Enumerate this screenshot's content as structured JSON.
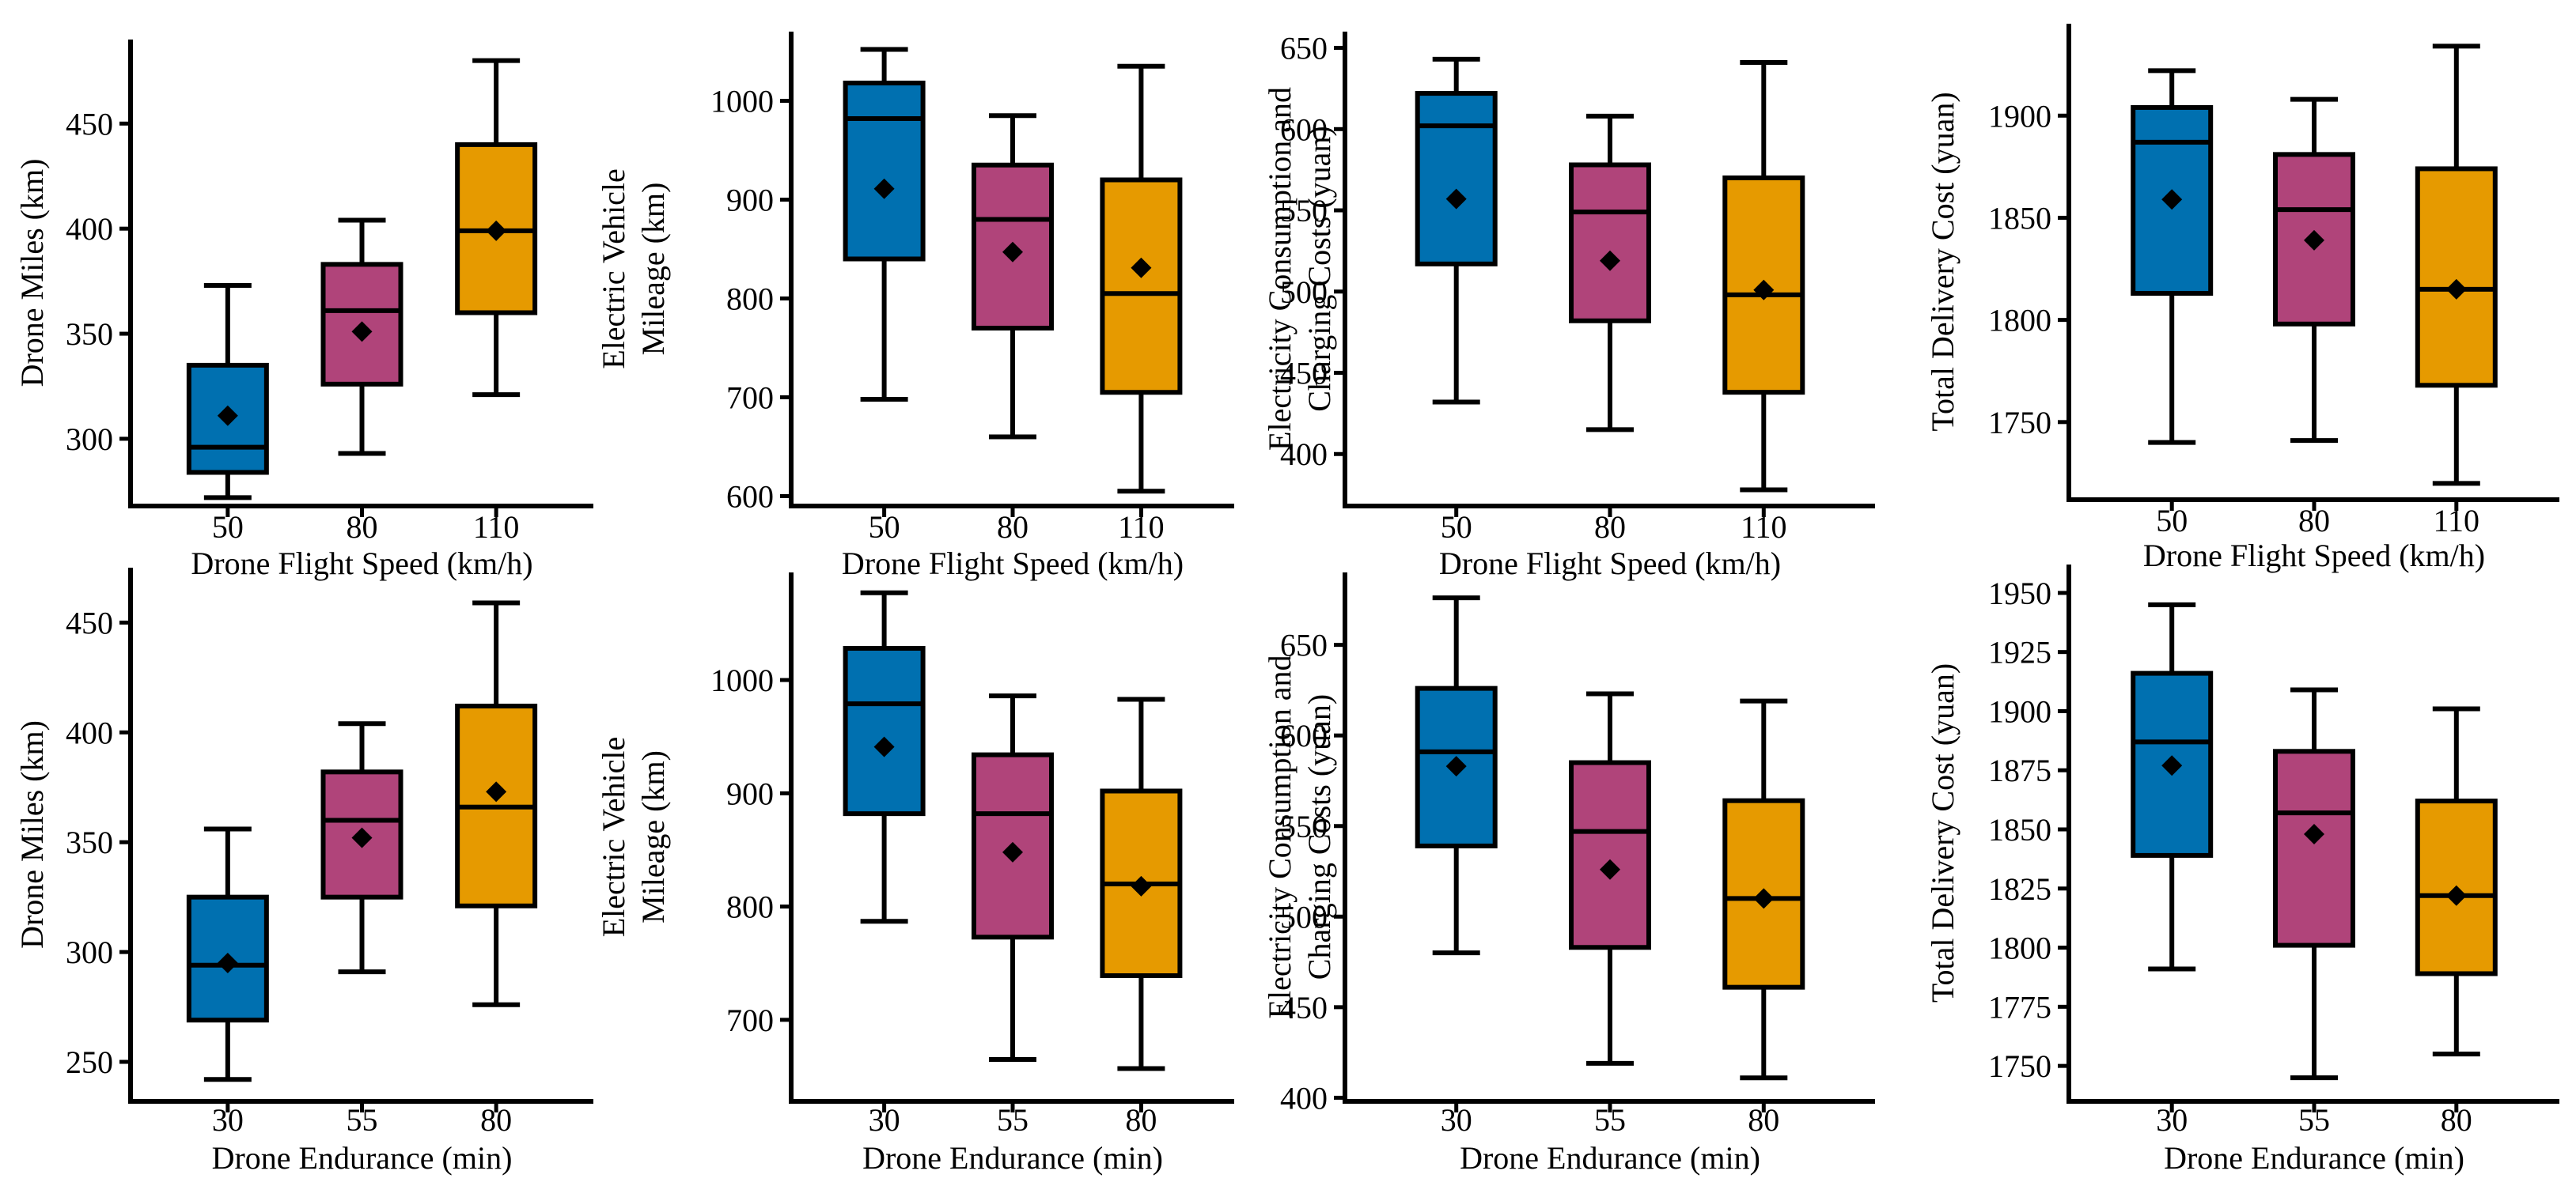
{
  "colors": {
    "blue": "#0070B0",
    "magenta": "#B0447A",
    "orange": "#E69A00",
    "ink": "#000000"
  },
  "chart_data": [
    {
      "type": "box",
      "xlabel": "Drone Flight Speed (km/h)",
      "ylabel": [
        "Drone Miles (km)"
      ],
      "ylim": [
        268,
        490
      ],
      "yticks": [
        300,
        350,
        400,
        450
      ],
      "categories": [
        "50",
        "80",
        "110"
      ],
      "boxes": [
        {
          "color": "blue",
          "whisker_low": 272,
          "q1": 284,
          "median": 296,
          "q3": 335,
          "whisker_high": 373,
          "mean": 311
        },
        {
          "color": "magenta",
          "whisker_low": 293,
          "q1": 326,
          "median": 361,
          "q3": 383,
          "whisker_high": 404,
          "mean": 351
        },
        {
          "color": "orange",
          "whisker_low": 321,
          "q1": 360,
          "median": 399,
          "q3": 440,
          "whisker_high": 480,
          "mean": 399
        }
      ]
    },
    {
      "type": "box",
      "xlabel": "Drone Flight Speed (km/h)",
      "ylabel": [
        "Electric Vehicle",
        "Mileage (km)"
      ],
      "ylim": [
        590,
        1070
      ],
      "yticks": [
        600,
        700,
        800,
        900,
        1000
      ],
      "categories": [
        "50",
        "80",
        "110"
      ],
      "boxes": [
        {
          "color": "blue",
          "whisker_low": 698,
          "q1": 840,
          "median": 982,
          "q3": 1018,
          "whisker_high": 1052,
          "mean": 911
        },
        {
          "color": "magenta",
          "whisker_low": 660,
          "q1": 770,
          "median": 880,
          "q3": 935,
          "whisker_high": 985,
          "mean": 847
        },
        {
          "color": "orange",
          "whisker_low": 605,
          "q1": 705,
          "median": 805,
          "q3": 920,
          "whisker_high": 1035,
          "mean": 831
        }
      ]
    },
    {
      "type": "box",
      "xlabel": "Drone Flight Speed (km/h)",
      "ylabel": [
        "Electricity Consumption and",
        "Charging Costs (yuan)"
      ],
      "ylim": [
        368,
        660
      ],
      "yticks": [
        400,
        450,
        500,
        550,
        600,
        650
      ],
      "categories": [
        "50",
        "80",
        "110"
      ],
      "boxes": [
        {
          "color": "blue",
          "whisker_low": 432,
          "q1": 517,
          "median": 602,
          "q3": 622,
          "whisker_high": 643,
          "mean": 557
        },
        {
          "color": "magenta",
          "whisker_low": 415,
          "q1": 482,
          "median": 549,
          "q3": 578,
          "whisker_high": 608,
          "mean": 519
        },
        {
          "color": "orange",
          "whisker_low": 378,
          "q1": 438,
          "median": 498,
          "q3": 570,
          "whisker_high": 641,
          "mean": 501
        }
      ]
    },
    {
      "type": "box",
      "xlabel": "Drone Flight Speed (km/h)",
      "ylabel": [
        "Total Delivery Cost (yuan)"
      ],
      "ylim": [
        1712,
        1945
      ],
      "yticks": [
        1750,
        1800,
        1850,
        1900
      ],
      "categories": [
        "50",
        "80",
        "110"
      ],
      "boxes": [
        {
          "color": "blue",
          "whisker_low": 1740,
          "q1": 1813,
          "median": 1887,
          "q3": 1904,
          "whisker_high": 1922,
          "mean": 1859
        },
        {
          "color": "magenta",
          "whisker_low": 1741,
          "q1": 1798,
          "median": 1854,
          "q3": 1881,
          "whisker_high": 1908,
          "mean": 1839
        },
        {
          "color": "orange",
          "whisker_low": 1720,
          "q1": 1768,
          "median": 1815,
          "q3": 1874,
          "whisker_high": 1934,
          "mean": 1815
        }
      ]
    },
    {
      "type": "box",
      "xlabel": "Drone Endurance (min)",
      "ylabel": [
        "Drone Miles (km)"
      ],
      "ylim": [
        232,
        475
      ],
      "yticks": [
        250,
        300,
        350,
        400,
        450
      ],
      "categories": [
        "30",
        "55",
        "80"
      ],
      "boxes": [
        {
          "color": "blue",
          "whisker_low": 242,
          "q1": 269,
          "median": 294,
          "q3": 325,
          "whisker_high": 356,
          "mean": 295
        },
        {
          "color": "magenta",
          "whisker_low": 291,
          "q1": 325,
          "median": 360,
          "q3": 382,
          "whisker_high": 404,
          "mean": 352
        },
        {
          "color": "orange",
          "whisker_low": 276,
          "q1": 321,
          "median": 366,
          "q3": 412,
          "whisker_high": 459,
          "mean": 373
        }
      ]
    },
    {
      "type": "box",
      "xlabel": "Drone Endurance (min)",
      "ylabel": [
        "Electric Vehicle",
        "Mileage (km)"
      ],
      "ylim": [
        628,
        1095
      ],
      "yticks": [
        700,
        800,
        900,
        1000
      ],
      "categories": [
        "30",
        "55",
        "80"
      ],
      "boxes": [
        {
          "color": "blue",
          "whisker_low": 787,
          "q1": 882,
          "median": 979,
          "q3": 1028,
          "whisker_high": 1077,
          "mean": 941
        },
        {
          "color": "magenta",
          "whisker_low": 665,
          "q1": 773,
          "median": 882,
          "q3": 934,
          "whisker_high": 986,
          "mean": 848
        },
        {
          "color": "orange",
          "whisker_low": 657,
          "q1": 739,
          "median": 820,
          "q3": 902,
          "whisker_high": 983,
          "mean": 818
        }
      ]
    },
    {
      "type": "box",
      "xlabel": "Drone Endurance (min)",
      "ylabel": [
        "Electricity Consumption and",
        "Charging Costs (yuan)"
      ],
      "ylim": [
        398,
        690
      ],
      "yticks": [
        400,
        450,
        500,
        550,
        600,
        650
      ],
      "categories": [
        "30",
        "55",
        "80"
      ],
      "boxes": [
        {
          "color": "blue",
          "whisker_low": 480,
          "q1": 539,
          "median": 591,
          "q3": 626,
          "whisker_high": 676,
          "mean": 583
        },
        {
          "color": "magenta",
          "whisker_low": 419,
          "q1": 483,
          "median": 547,
          "q3": 585,
          "whisker_high": 623,
          "mean": 526
        },
        {
          "color": "orange",
          "whisker_low": 411,
          "q1": 461,
          "median": 510,
          "q3": 564,
          "whisker_high": 619,
          "mean": 510
        }
      ]
    },
    {
      "type": "box",
      "xlabel": "Drone Endurance (min)",
      "ylabel": [
        "Total Delivery Cost (yuan)"
      ],
      "ylim": [
        1735,
        1962
      ],
      "yticks": [
        1750,
        1775,
        1800,
        1825,
        1850,
        1875,
        1900,
        1925,
        1950
      ],
      "categories": [
        "30",
        "55",
        "80"
      ],
      "boxes": [
        {
          "color": "blue",
          "whisker_low": 1791,
          "q1": 1839,
          "median": 1887,
          "q3": 1916,
          "whisker_high": 1945,
          "mean": 1877
        },
        {
          "color": "magenta",
          "whisker_low": 1745,
          "q1": 1801,
          "median": 1857,
          "q3": 1883,
          "whisker_high": 1909,
          "mean": 1848
        },
        {
          "color": "orange",
          "whisker_low": 1755,
          "q1": 1789,
          "median": 1822,
          "q3": 1862,
          "whisker_high": 1901,
          "mean": 1822
        }
      ]
    }
  ]
}
